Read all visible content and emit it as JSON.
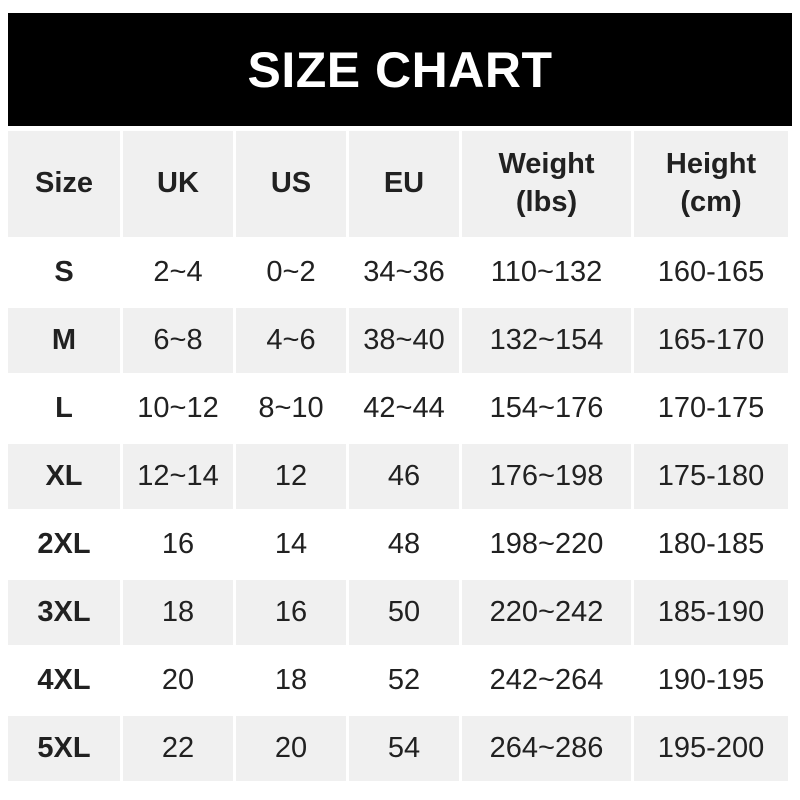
{
  "banner": {
    "title": "SIZE CHART"
  },
  "colors": {
    "banner_bg": "#000000",
    "banner_text": "#ffffff",
    "alt_row_bg": "#f0f0f0",
    "row_bg": "#ffffff",
    "text": "#212121"
  },
  "header": {
    "size": "Size",
    "uk": "UK",
    "us": "US",
    "eu": "EU",
    "weight": "Weight\n(lbs)",
    "height": "Height\n(cm)"
  },
  "chart_data": {
    "type": "table",
    "title": "SIZE CHART",
    "columns": [
      "Size",
      "UK",
      "US",
      "EU",
      "Weight (lbs)",
      "Height (cm)"
    ],
    "rows": [
      [
        "S",
        "2~4",
        "0~2",
        "34~36",
        "110~132",
        "160-165"
      ],
      [
        "M",
        "6~8",
        "4~6",
        "38~40",
        "132~154",
        "165-170"
      ],
      [
        "L",
        "10~12",
        "8~10",
        "42~44",
        "154~176",
        "170-175"
      ],
      [
        "XL",
        "12~14",
        "12",
        "46",
        "176~198",
        "175-180"
      ],
      [
        "2XL",
        "16",
        "14",
        "48",
        "198~220",
        "180-185"
      ],
      [
        "3XL",
        "18",
        "16",
        "50",
        "220~242",
        "185-190"
      ],
      [
        "4XL",
        "20",
        "18",
        "52",
        "242~264",
        "190-195"
      ],
      [
        "5XL",
        "22",
        "20",
        "54",
        "264~286",
        "195-200"
      ]
    ],
    "layout": {
      "alternating_row_shading": true,
      "shaded_rows": [
        "M",
        "XL",
        "3XL",
        "5XL"
      ],
      "header_shaded": true
    }
  }
}
